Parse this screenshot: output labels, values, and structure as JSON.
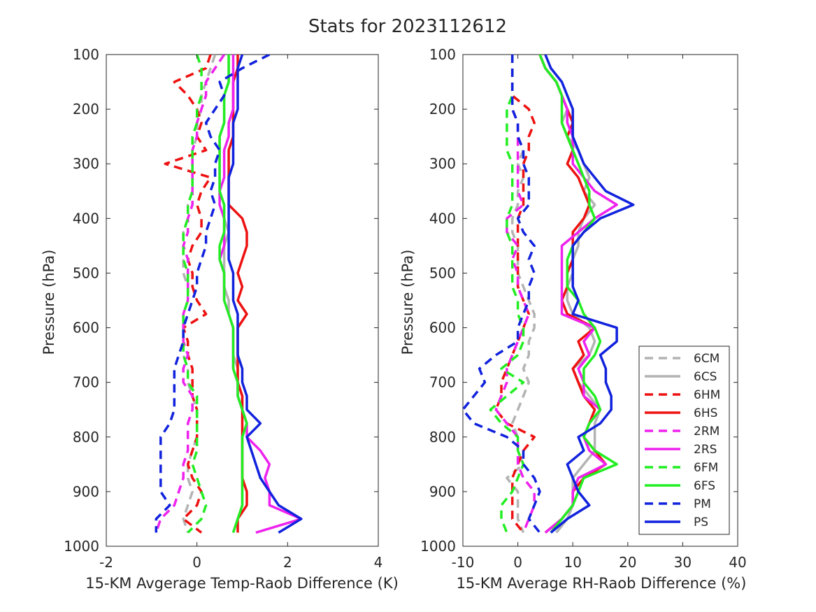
{
  "figure": {
    "title": "Stats for 2023112612"
  },
  "legend": {
    "placement": "lower-right of right panel",
    "entries": [
      {
        "label": "6CM",
        "color": "#b3b3b3",
        "dashed": true
      },
      {
        "label": "6CS",
        "color": "#b3b3b3",
        "dashed": false
      },
      {
        "label": "6HM",
        "color": "#ee1111",
        "dashed": true
      },
      {
        "label": "6HS",
        "color": "#ee1111",
        "dashed": false
      },
      {
        "label": "2RM",
        "color": "#ee22ee",
        "dashed": true
      },
      {
        "label": "2RS",
        "color": "#ee22ee",
        "dashed": false
      },
      {
        "label": "6FM",
        "color": "#22ee22",
        "dashed": true
      },
      {
        "label": "6FS",
        "color": "#22ee22",
        "dashed": false
      },
      {
        "label": "PM",
        "color": "#1122dd",
        "dashed": true
      },
      {
        "label": "PS",
        "color": "#1122dd",
        "dashed": false
      }
    ]
  },
  "chart_data": [
    {
      "type": "line",
      "title": "",
      "xlabel": "15-KM Avgerage Temp-Raob Difference (K)",
      "ylabel": "Pressure (hPa)",
      "xlim": [
        -2,
        4
      ],
      "ylim": [
        100,
        1000
      ],
      "y_reversed": true,
      "grid": false,
      "xticks": [
        "-2",
        "0",
        "2",
        "4"
      ],
      "yticks": [
        "100",
        "200",
        "300",
        "400",
        "500",
        "600",
        "700",
        "800",
        "900",
        "1000"
      ],
      "y": [
        100,
        125,
        150,
        175,
        200,
        225,
        250,
        275,
        300,
        325,
        350,
        375,
        400,
        425,
        450,
        475,
        500,
        525,
        550,
        575,
        600,
        625,
        650,
        675,
        700,
        725,
        750,
        775,
        800,
        825,
        850,
        875,
        900,
        925,
        950,
        975
      ],
      "series": [
        {
          "name": "6CM",
          "x": [
            0.4,
            0.3,
            0.2,
            0.1,
            0.1,
            0.0,
            0.0,
            -0.1,
            -0.1,
            -0.1,
            -0.1,
            -0.2,
            -0.2,
            -0.3,
            -0.3,
            -0.3,
            -0.3,
            -0.2,
            -0.2,
            -0.3,
            -0.3,
            -0.3,
            -0.3,
            -0.2,
            -0.2,
            -0.1,
            0.0,
            0.0,
            0.0,
            -0.1,
            -0.2,
            -0.2,
            -0.1,
            -0.2,
            -0.3,
            -0.2
          ]
        },
        {
          "name": "6CS",
          "x": [
            0.7,
            0.7,
            0.7,
            0.6,
            0.6,
            0.6,
            0.5,
            0.5,
            0.5,
            0.5,
            0.5,
            0.6,
            0.6,
            0.7,
            0.6,
            0.6,
            0.6,
            0.6,
            0.7,
            0.7,
            0.8,
            0.8,
            0.8,
            0.9,
            0.9,
            1.0,
            1.0,
            1.1,
            1.0,
            1.0,
            1.0,
            1.0,
            1.0,
            1.0,
            0.9,
            0.8
          ]
        },
        {
          "name": "6HM",
          "x": [
            0.3,
            0.2,
            -0.5,
            -0.2,
            0.0,
            0.1,
            0.0,
            0.2,
            -0.7,
            0.3,
            0.1,
            0.0,
            0.1,
            0.1,
            -0.1,
            -0.2,
            -0.1,
            -0.1,
            0.0,
            0.2,
            -0.3,
            -0.2,
            -0.2,
            -0.1,
            -0.1,
            -0.1,
            0.0,
            0.0,
            0.0,
            -0.1,
            -0.2,
            -0.1,
            0.1,
            0.0,
            -0.3,
            0.1
          ]
        },
        {
          "name": "6HS",
          "x": [
            0.9,
            0.9,
            0.8,
            0.8,
            0.8,
            0.8,
            0.8,
            0.7,
            0.7,
            0.7,
            0.7,
            0.7,
            1.0,
            1.1,
            1.1,
            1.0,
            0.9,
            1.0,
            0.9,
            1.1,
            0.9,
            0.9,
            0.9,
            0.9,
            0.9,
            1.0,
            1.0,
            1.0,
            1.0,
            1.0,
            1.0,
            1.0,
            1.1,
            1.1,
            0.9,
            0.9
          ]
        },
        {
          "name": "2RM",
          "x": [
            0.6,
            0.4,
            0.2,
            0.2,
            0.1,
            0.0,
            0.0,
            -0.1,
            -0.1,
            -0.1,
            -0.1,
            -0.1,
            -0.2,
            -0.2,
            -0.3,
            -0.2,
            -0.2,
            -0.2,
            -0.2,
            -0.3,
            -0.3,
            -0.3,
            -0.2,
            -0.3,
            -0.3,
            -0.1,
            -0.1,
            -0.2,
            -0.2,
            -0.2,
            -0.3,
            -0.3,
            -0.4,
            -0.5,
            -0.8,
            -0.9
          ]
        },
        {
          "name": "2RS",
          "x": [
            0.8,
            0.8,
            0.8,
            0.8,
            0.8,
            0.7,
            0.7,
            0.6,
            0.6,
            0.6,
            0.5,
            0.5,
            0.6,
            0.6,
            0.6,
            0.5,
            0.6,
            0.6,
            0.6,
            0.7,
            0.8,
            0.8,
            0.8,
            0.8,
            0.9,
            0.9,
            1.0,
            1.1,
            1.1,
            1.4,
            1.6,
            1.5,
            1.6,
            1.6,
            2.3,
            1.3
          ]
        },
        {
          "name": "6FM",
          "x": [
            0.0,
            0.1,
            0.1,
            0.1,
            0.0,
            0.0,
            -0.1,
            -0.1,
            -0.1,
            -0.1,
            -0.1,
            -0.2,
            -0.2,
            -0.3,
            -0.3,
            -0.3,
            -0.2,
            -0.2,
            -0.2,
            -0.3,
            -0.3,
            -0.3,
            -0.3,
            -0.2,
            -0.2,
            0.0,
            0.0,
            0.0,
            0.0,
            0.0,
            -0.1,
            0.0,
            0.1,
            0.2,
            0.1,
            -0.2
          ]
        },
        {
          "name": "6FS",
          "x": [
            0.7,
            0.7,
            0.7,
            0.6,
            0.6,
            0.6,
            0.5,
            0.5,
            0.5,
            0.5,
            0.5,
            0.6,
            0.6,
            0.6,
            0.5,
            0.5,
            0.6,
            0.6,
            0.6,
            0.7,
            0.8,
            0.8,
            0.8,
            0.8,
            0.9,
            0.9,
            1.0,
            1.1,
            1.0,
            1.0,
            1.0,
            1.0,
            1.0,
            1.0,
            0.9,
            0.8
          ]
        },
        {
          "name": "PM",
          "x": [
            1.6,
            1.0,
            0.5,
            0.6,
            0.4,
            0.2,
            0.3,
            0.5,
            0.4,
            0.4,
            0.3,
            0.4,
            0.3,
            0.2,
            0.2,
            0.1,
            0.0,
            0.0,
            -0.1,
            -0.2,
            -0.3,
            -0.3,
            -0.4,
            -0.5,
            -0.5,
            -0.5,
            -0.5,
            -0.6,
            -0.8,
            -0.8,
            -0.8,
            -0.8,
            -0.8,
            -0.6,
            -0.9,
            -0.9
          ]
        },
        {
          "name": "PS",
          "x": [
            1.0,
            0.9,
            0.9,
            0.9,
            0.9,
            0.8,
            0.8,
            0.8,
            0.8,
            0.7,
            0.7,
            0.7,
            0.7,
            0.7,
            0.7,
            0.7,
            0.8,
            0.8,
            0.8,
            0.9,
            0.9,
            0.9,
            0.9,
            1.0,
            1.0,
            1.1,
            1.1,
            1.4,
            1.1,
            1.2,
            1.3,
            1.4,
            1.6,
            1.8,
            2.3,
            1.8
          ]
        }
      ]
    },
    {
      "type": "line",
      "title": "",
      "xlabel": "15-KM Average RH-Raob Difference (%)",
      "ylabel": "Pressure (hPa)",
      "xlim": [
        -10,
        40
      ],
      "ylim": [
        100,
        1000
      ],
      "y_reversed": true,
      "grid": false,
      "xticks": [
        "-10",
        "0",
        "10",
        "20",
        "30",
        "40"
      ],
      "yticks": [
        "100",
        "200",
        "300",
        "400",
        "500",
        "600",
        "700",
        "800",
        "900",
        "1000"
      ],
      "y": [
        100,
        125,
        150,
        175,
        200,
        225,
        250,
        275,
        300,
        325,
        350,
        375,
        400,
        425,
        450,
        475,
        500,
        525,
        550,
        575,
        600,
        625,
        650,
        675,
        700,
        725,
        750,
        775,
        800,
        825,
        850,
        875,
        900,
        925,
        950,
        975
      ],
      "series": [
        {
          "name": "6CM",
          "x": [
            -1.0,
            -1.0,
            -1.0,
            -1.0,
            -1.0,
            0.0,
            0.0,
            1.0,
            0.0,
            1.0,
            0.0,
            0.0,
            -1.0,
            -1.0,
            0.0,
            0.0,
            0.0,
            1.0,
            2.0,
            3.0,
            3.0,
            2.0,
            2.0,
            1.0,
            2.0,
            1.0,
            0.0,
            -1.0,
            0.0,
            0.0,
            1.0,
            -2.0,
            0.0,
            0.0,
            0.0,
            1.0
          ]
        },
        {
          "name": "6CS",
          "x": [
            4.0,
            5.0,
            7.0,
            8.0,
            9.0,
            8.0,
            9.0,
            11.0,
            12.0,
            13.0,
            12.0,
            14.0,
            12.0,
            11.0,
            11.0,
            10.0,
            10.0,
            9.0,
            9.0,
            10.0,
            13.0,
            14.0,
            13.0,
            10.0,
            11.0,
            13.0,
            15.0,
            14.0,
            14.0,
            14.0,
            12.0,
            10.0,
            10.0,
            10.0,
            9.0,
            7.0
          ]
        },
        {
          "name": "6HM",
          "x": [
            -1.0,
            -1.0,
            -1.0,
            -1.0,
            2.0,
            3.0,
            2.0,
            2.0,
            1.0,
            1.0,
            1.0,
            1.0,
            0.0,
            0.0,
            0.0,
            0.0,
            0.0,
            0.0,
            1.0,
            2.0,
            1.0,
            0.0,
            -1.0,
            -2.0,
            -3.0,
            -3.0,
            -4.0,
            -2.0,
            3.0,
            1.0,
            0.0,
            -1.0,
            -1.0,
            -1.0,
            -1.0,
            1.0
          ]
        },
        {
          "name": "6HS",
          "x": [
            4.0,
            5.0,
            7.0,
            8.0,
            9.0,
            10.0,
            9.0,
            10.0,
            9.0,
            11.0,
            12.0,
            13.0,
            12.0,
            10.0,
            10.0,
            10.0,
            9.0,
            9.0,
            8.0,
            9.0,
            14.0,
            11.0,
            12.0,
            10.0,
            11.0,
            12.0,
            14.0,
            13.0,
            12.0,
            14.0,
            16.0,
            12.0,
            10.0,
            10.0,
            8.0,
            5.0
          ]
        },
        {
          "name": "2RM",
          "x": [
            -1.0,
            -1.0,
            -1.0,
            -1.0,
            -1.0,
            0.0,
            0.0,
            0.0,
            0.0,
            0.0,
            0.0,
            1.0,
            -2.0,
            -2.0,
            0.0,
            -1.0,
            0.0,
            0.0,
            1.0,
            2.0,
            1.0,
            0.0,
            -1.0,
            -2.0,
            -2.0,
            -3.0,
            -4.0,
            -2.0,
            0.0,
            0.0,
            0.0,
            1.0,
            3.0,
            3.0,
            2.0,
            1.0
          ]
        },
        {
          "name": "2RS",
          "x": [
            4.0,
            5.0,
            7.0,
            8.0,
            9.0,
            9.0,
            10.0,
            10.0,
            10.0,
            12.0,
            14.0,
            18.0,
            14.0,
            11.0,
            8.0,
            8.0,
            8.0,
            8.0,
            8.0,
            8.0,
            14.0,
            12.0,
            13.0,
            11.0,
            12.0,
            12.0,
            15.0,
            13.0,
            12.0,
            13.0,
            16.0,
            11.0,
            10.0,
            10.0,
            8.0,
            5.0
          ]
        },
        {
          "name": "6FM",
          "x": [
            -1.0,
            -1.0,
            -1.0,
            -1.0,
            -2.0,
            -2.0,
            -2.0,
            -2.0,
            -1.0,
            -1.0,
            -1.0,
            -1.0,
            -2.0,
            -2.0,
            -1.0,
            -1.0,
            -1.0,
            -1.0,
            0.0,
            0.0,
            1.0,
            1.0,
            0.0,
            -3.0,
            1.0,
            -2.0,
            -5.0,
            -3.0,
            0.0,
            0.0,
            1.0,
            0.0,
            -1.0,
            -3.0,
            -3.0,
            -2.0
          ]
        },
        {
          "name": "6FS",
          "x": [
            4.0,
            5.0,
            7.0,
            8.0,
            8.0,
            8.0,
            9.0,
            10.0,
            11.0,
            12.0,
            13.0,
            13.0,
            14.0,
            12.0,
            10.0,
            9.0,
            9.0,
            9.0,
            11.0,
            12.0,
            14.0,
            15.0,
            14.0,
            12.0,
            12.0,
            14.0,
            15.0,
            13.0,
            12.0,
            14.0,
            18.0,
            12.0,
            11.0,
            10.0,
            8.0,
            6.0
          ]
        },
        {
          "name": "PM",
          "x": [
            -1.0,
            -1.0,
            -1.0,
            -1.0,
            -1.0,
            0.0,
            0.0,
            1.0,
            1.0,
            2.0,
            2.0,
            2.0,
            0.0,
            1.0,
            3.0,
            2.0,
            3.0,
            2.0,
            2.0,
            1.0,
            0.0,
            0.0,
            -4.0,
            -7.0,
            -6.0,
            -8.0,
            -10.0,
            -8.0,
            -2.0,
            1.0,
            1.0,
            3.0,
            4.0,
            3.0,
            2.0,
            4.0
          ]
        },
        {
          "name": "PS",
          "x": [
            5.0,
            6.0,
            8.0,
            9.0,
            10.0,
            10.0,
            10.0,
            11.0,
            12.0,
            14.0,
            16.0,
            21.0,
            15.0,
            12.0,
            10.0,
            10.0,
            10.0,
            10.0,
            11.0,
            10.0,
            18.0,
            18.0,
            15.0,
            16.0,
            16.0,
            17.0,
            17.0,
            15.0,
            11.0,
            12.0,
            9.0,
            10.0,
            11.0,
            13.0,
            9.0,
            6.0
          ]
        }
      ]
    }
  ]
}
